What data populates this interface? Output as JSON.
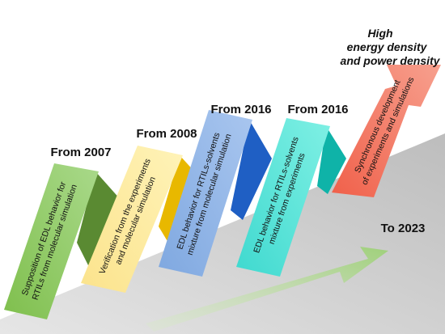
{
  "stages": [
    {
      "label": "From 2007",
      "text": [
        "Supposition of EDL behavior for",
        "RTILs from molecular simulation"
      ]
    },
    {
      "label": "From 2008",
      "text": [
        "Verification from the experiments",
        "and molecular simulation"
      ]
    },
    {
      "label": "From 2016",
      "text": [
        "EDL behavior for RTILs-solvents",
        "mixture from molecular simulation"
      ]
    },
    {
      "label": "From 2016",
      "text": [
        "EDL behavior for RTILs-solvents",
        "mixture from experiments"
      ]
    }
  ],
  "final_arrow": {
    "text": [
      "Synchronous development",
      "of experiments and simulations"
    ]
  },
  "goal": {
    "lines": [
      "High",
      "energy density",
      "and power density"
    ]
  },
  "end_label": "To 2023"
}
